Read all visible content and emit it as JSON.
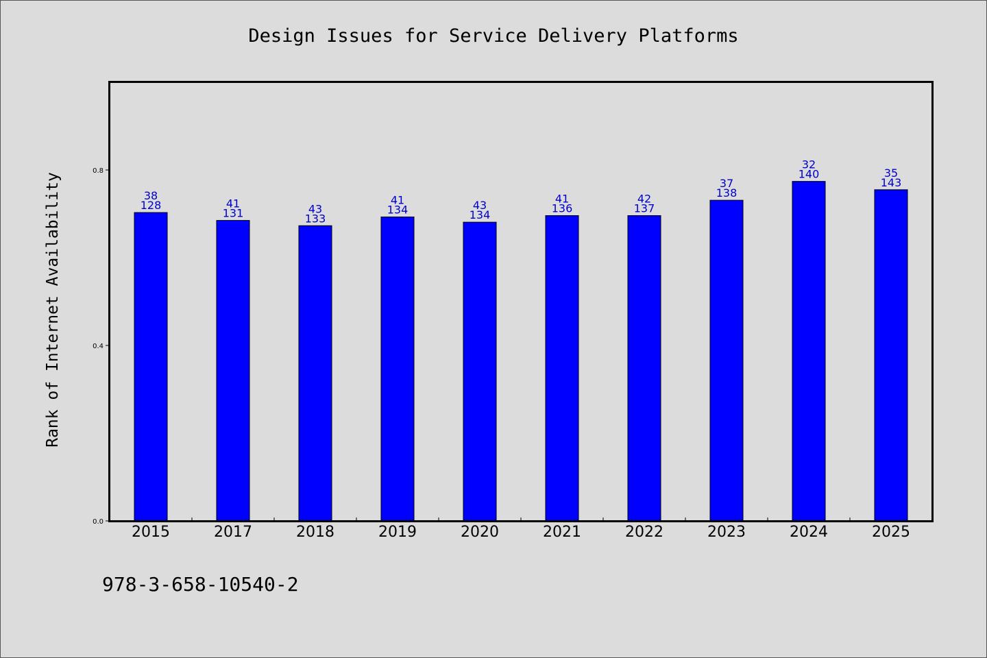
{
  "chart_data": {
    "type": "bar",
    "title": "Design Issues for Service Delivery Platforms",
    "xlabel": "",
    "ylabel": "Rank of Internet Availability",
    "ylim": [
      0,
      1
    ],
    "yticks": [
      "0.0",
      "0.4",
      "0.8"
    ],
    "grid": false,
    "legend": "none",
    "bar_color": "#0000ff",
    "label_color": "#0000cc",
    "categories": [
      "2015",
      "2017",
      "2018",
      "2019",
      "2020",
      "2021",
      "2022",
      "2023",
      "2024",
      "2025"
    ],
    "values": [
      0.703,
      0.685,
      0.673,
      0.693,
      0.681,
      0.696,
      0.696,
      0.731,
      0.774,
      0.755
    ],
    "data_labels_top": [
      "38",
      "41",
      "43",
      "41",
      "43",
      "41",
      "42",
      "37",
      "32",
      "35"
    ],
    "data_labels_bottom": [
      "128",
      "131",
      "133",
      "134",
      "134",
      "136",
      "137",
      "138",
      "140",
      "143"
    ]
  },
  "footer": {
    "isbn": "978-3-658-10540-2"
  }
}
